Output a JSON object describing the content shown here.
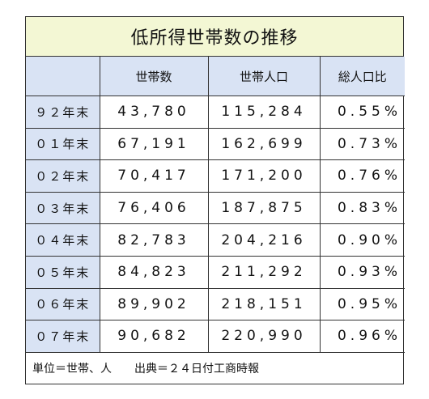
{
  "title": "低所得世帯数の推移",
  "headers": [
    "",
    "世帯数",
    "世帯人口",
    "総人口比"
  ],
  "rows": [
    {
      "year": "９２年末",
      "households": "43,780",
      "population": "115,284",
      "ratio": "0.55%"
    },
    {
      "year": "０１年末",
      "households": "67,191",
      "population": "162,699",
      "ratio": "0.73%"
    },
    {
      "year": "０２年末",
      "households": "70,417",
      "population": "171,200",
      "ratio": "0.76%"
    },
    {
      "year": "０３年末",
      "households": "76,406",
      "population": "187,875",
      "ratio": "0.83%"
    },
    {
      "year": "０４年末",
      "households": "82,783",
      "population": "204,216",
      "ratio": "0.90%"
    },
    {
      "year": "０５年末",
      "households": "84,823",
      "population": "211,292",
      "ratio": "0.93%"
    },
    {
      "year": "０６年末",
      "households": "89,902",
      "population": "218,151",
      "ratio": "0.95%"
    },
    {
      "year": "０７年末",
      "households": "90,682",
      "population": "220,990",
      "ratio": "0.96%"
    }
  ],
  "footer": "単位＝世帯、人　　出典＝２４日付工商時報",
  "colors": {
    "title_bg": "#f3f7d4",
    "header_bg": "#d9e3f4",
    "border": "#333333"
  }
}
